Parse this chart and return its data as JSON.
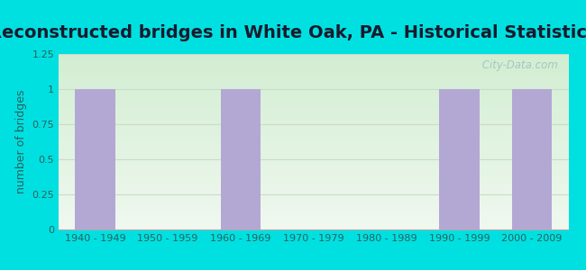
{
  "title": "Reconstructed bridges in White Oak, PA - Historical Statistics",
  "categories": [
    "1940 - 1949",
    "1950 - 1959",
    "1960 - 1969",
    "1970 - 1979",
    "1980 - 1989",
    "1990 - 1999",
    "2000 - 2009"
  ],
  "values": [
    1,
    0,
    1,
    0,
    0,
    1,
    1
  ],
  "bar_color": "#b3a8d4",
  "background_outer": "#00e0e0",
  "background_top": "#f0f8f0",
  "background_bottom": "#d8f0d8",
  "ylabel": "number of bridges",
  "ylim": [
    0,
    1.25
  ],
  "yticks": [
    0,
    0.25,
    0.5,
    0.75,
    1,
    1.25
  ],
  "title_fontsize": 14,
  "axis_label_fontsize": 9,
  "tick_fontsize": 8,
  "bar_width": 0.55,
  "watermark": " City-Data.com",
  "title_color": "#1a1a2e",
  "axis_color": "#2a6060",
  "grid_color": "#c8dcc8"
}
